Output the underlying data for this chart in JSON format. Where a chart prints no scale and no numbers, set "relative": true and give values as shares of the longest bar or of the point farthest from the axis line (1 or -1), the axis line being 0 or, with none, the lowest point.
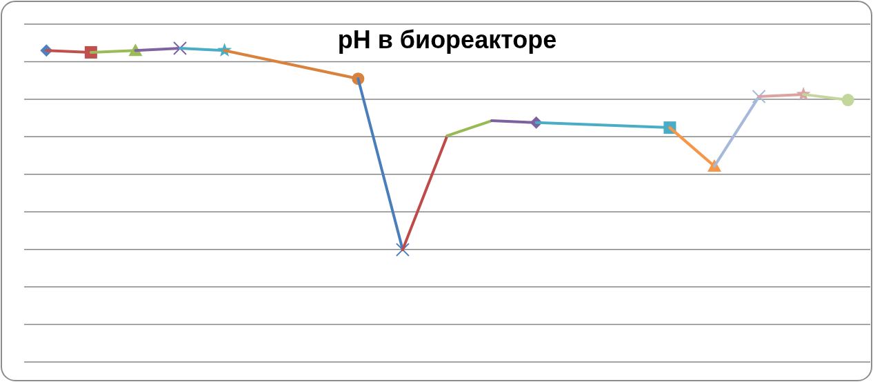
{
  "chart_data": {
    "type": "line",
    "title": "pH в биореакторе",
    "relative": true,
    "grid": "y",
    "categories": [
      null,
      null,
      null,
      null,
      null,
      null,
      null,
      null,
      null,
      null,
      null,
      null,
      null,
      null,
      null,
      null,
      null,
      null,
      null
    ],
    "series": [
      {
        "color": "#4f81bd",
        "marker": "diamond",
        "values": [
          0.993,
          null,
          null,
          null,
          null,
          null,
          null,
          null,
          null,
          null,
          null,
          null,
          null,
          null,
          null,
          null,
          null,
          null,
          null
        ]
      },
      {
        "color": "#c0504d",
        "marker": "square",
        "values": [
          0.993,
          0.987,
          null,
          null,
          null,
          null,
          null,
          null,
          null,
          null,
          null,
          null,
          null,
          null,
          null,
          null,
          null,
          null,
          null
        ]
      },
      {
        "color": "#9bbb59",
        "marker": "triangle",
        "values": [
          null,
          0.987,
          0.993,
          null,
          null,
          null,
          null,
          null,
          null,
          null,
          null,
          null,
          null,
          null,
          null,
          null,
          null,
          null,
          null
        ]
      },
      {
        "color": "#8064a2",
        "marker": "cross",
        "values": [
          null,
          null,
          0.993,
          1,
          null,
          null,
          null,
          null,
          null,
          null,
          null,
          null,
          null,
          null,
          null,
          null,
          null,
          null,
          null
        ]
      },
      {
        "color": "#4bacc6",
        "marker": "star",
        "values": [
          null,
          null,
          null,
          1,
          0.993,
          null,
          null,
          null,
          null,
          null,
          null,
          null,
          null,
          null,
          null,
          null,
          null,
          null,
          null
        ]
      },
      {
        "color": "#d9823b",
        "marker": "circle",
        "values": [
          null,
          null,
          null,
          null,
          0.993,
          null,
          null,
          0.903,
          null,
          null,
          null,
          null,
          null,
          null,
          null,
          null,
          null,
          null,
          null
        ]
      },
      {
        "color": "#4a7ebb",
        "marker": "cross",
        "values": [
          null,
          null,
          null,
          null,
          null,
          null,
          null,
          0.903,
          0.358,
          null,
          null,
          null,
          null,
          null,
          null,
          null,
          null,
          null,
          null
        ]
      },
      {
        "color": "#be4b48",
        "marker": "none",
        "values": [
          null,
          null,
          null,
          null,
          null,
          null,
          null,
          null,
          0.358,
          0.721,
          null,
          null,
          null,
          null,
          null,
          null,
          null,
          null,
          null
        ]
      },
      {
        "color": "#98b954",
        "marker": "none",
        "values": [
          null,
          null,
          null,
          null,
          null,
          null,
          null,
          null,
          null,
          0.721,
          0.769,
          null,
          null,
          null,
          null,
          null,
          null,
          null,
          null
        ]
      },
      {
        "color": "#7d60a0",
        "marker": "diamond",
        "values": [
          null,
          null,
          null,
          null,
          null,
          null,
          null,
          null,
          null,
          null,
          0.769,
          0.763,
          null,
          null,
          null,
          null,
          null,
          null,
          null
        ]
      },
      {
        "color": "#4aacc5",
        "marker": "square",
        "values": [
          null,
          null,
          null,
          null,
          null,
          null,
          null,
          null,
          null,
          null,
          null,
          0.763,
          null,
          null,
          0.747,
          null,
          null,
          null,
          null
        ]
      },
      {
        "color": "#f79646",
        "marker": "triangle",
        "values": [
          null,
          null,
          null,
          null,
          null,
          null,
          null,
          null,
          null,
          null,
          null,
          null,
          null,
          null,
          0.747,
          0.624,
          null,
          null,
          null
        ]
      },
      {
        "color": "#a5b9db",
        "marker": "cross",
        "values": [
          null,
          null,
          null,
          null,
          null,
          null,
          null,
          null,
          null,
          null,
          null,
          null,
          null,
          null,
          null,
          0.624,
          0.846,
          null,
          null
        ]
      },
      {
        "color": "#d9a3a2",
        "marker": "star",
        "values": [
          null,
          null,
          null,
          null,
          null,
          null,
          null,
          null,
          null,
          null,
          null,
          null,
          null,
          null,
          null,
          null,
          0.846,
          0.853,
          null
        ]
      },
      {
        "color": "#c3d69b",
        "marker": "circle",
        "values": [
          null,
          null,
          null,
          null,
          null,
          null,
          null,
          null,
          null,
          null,
          null,
          null,
          null,
          null,
          null,
          null,
          null,
          0.853,
          0.835
        ]
      }
    ]
  }
}
